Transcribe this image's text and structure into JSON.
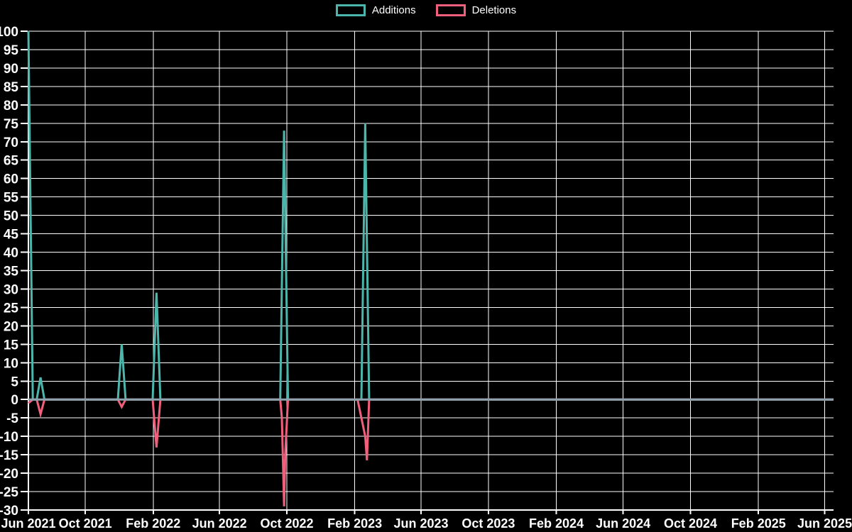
{
  "legend": {
    "items": [
      {
        "label": "Additions"
      },
      {
        "label": "Deletions"
      }
    ]
  },
  "chart_data": {
    "type": "line",
    "background": "#000000",
    "grid_color": "#ffffff",
    "text_color": "#ffffff",
    "zero_line_color": "#8ca3ad",
    "legend_position": "top-center",
    "grid": true,
    "x_axis": {
      "type": "time",
      "min": "2021-06-20",
      "max": "2025-06-17",
      "ticks": [
        {
          "label": "Jun 2021",
          "date": "2021-06-20"
        },
        {
          "label": "Oct 2021",
          "date": "2021-10-01"
        },
        {
          "label": "Feb 2022",
          "date": "2022-02-01"
        },
        {
          "label": "Jun 2022",
          "date": "2022-06-01"
        },
        {
          "label": "Oct 2022",
          "date": "2022-10-01"
        },
        {
          "label": "Feb 2023",
          "date": "2023-02-01"
        },
        {
          "label": "Jun 2023",
          "date": "2023-06-01"
        },
        {
          "label": "Oct 2023",
          "date": "2023-10-01"
        },
        {
          "label": "Feb 2024",
          "date": "2024-02-01"
        },
        {
          "label": "Jun 2024",
          "date": "2024-06-01"
        },
        {
          "label": "Oct 2024",
          "date": "2024-10-01"
        },
        {
          "label": "Feb 2025",
          "date": "2025-02-01"
        },
        {
          "label": "Jun 2025",
          "date": "2025-06-01"
        }
      ]
    },
    "y_axis": {
      "min": -30,
      "max": 100,
      "step": 5,
      "tick_labels": [
        "100",
        "95",
        "90",
        "85",
        "80",
        "75",
        "70",
        "65",
        "60",
        "55",
        "50",
        "45",
        "40",
        "35",
        "30",
        "25",
        "20",
        "15",
        "10",
        "5",
        "0",
        "-5",
        "-10",
        "-15",
        "-20",
        "-25",
        "-30"
      ]
    },
    "series": [
      {
        "name": "Additions",
        "color": "#4db6ac",
        "points": [
          [
            "2021-06-20",
            100
          ],
          [
            "2021-06-28",
            0
          ],
          [
            "2021-07-05",
            0
          ],
          [
            "2021-07-12",
            6
          ],
          [
            "2021-07-19",
            0
          ],
          [
            "2021-11-29",
            0
          ],
          [
            "2021-12-06",
            15
          ],
          [
            "2021-12-13",
            0
          ],
          [
            "2022-01-31",
            0
          ],
          [
            "2022-02-07",
            29
          ],
          [
            "2022-02-14",
            0
          ],
          [
            "2022-09-19",
            0
          ],
          [
            "2022-09-26",
            73
          ],
          [
            "2022-10-03",
            0
          ],
          [
            "2023-02-13",
            0
          ],
          [
            "2023-02-20",
            75
          ],
          [
            "2023-02-27",
            0
          ],
          [
            "2025-06-17",
            0
          ]
        ]
      },
      {
        "name": "Deletions",
        "color": "#f0607c",
        "points": [
          [
            "2021-06-20",
            -1
          ],
          [
            "2021-06-28",
            0
          ],
          [
            "2021-07-05",
            0
          ],
          [
            "2021-07-12",
            -4
          ],
          [
            "2021-07-19",
            0
          ],
          [
            "2021-11-29",
            0
          ],
          [
            "2021-12-06",
            -2
          ],
          [
            "2021-12-13",
            0
          ],
          [
            "2022-01-31",
            0
          ],
          [
            "2022-02-07",
            -13
          ],
          [
            "2022-02-14",
            0
          ],
          [
            "2022-09-19",
            0
          ],
          [
            "2022-09-22",
            -5
          ],
          [
            "2022-09-26",
            -29
          ],
          [
            "2022-09-28",
            -15
          ],
          [
            "2022-10-03",
            0
          ],
          [
            "2023-02-06",
            0
          ],
          [
            "2023-02-20",
            -10
          ],
          [
            "2023-02-23",
            -16.5
          ],
          [
            "2023-02-27",
            0
          ],
          [
            "2025-06-17",
            0
          ]
        ]
      }
    ]
  }
}
